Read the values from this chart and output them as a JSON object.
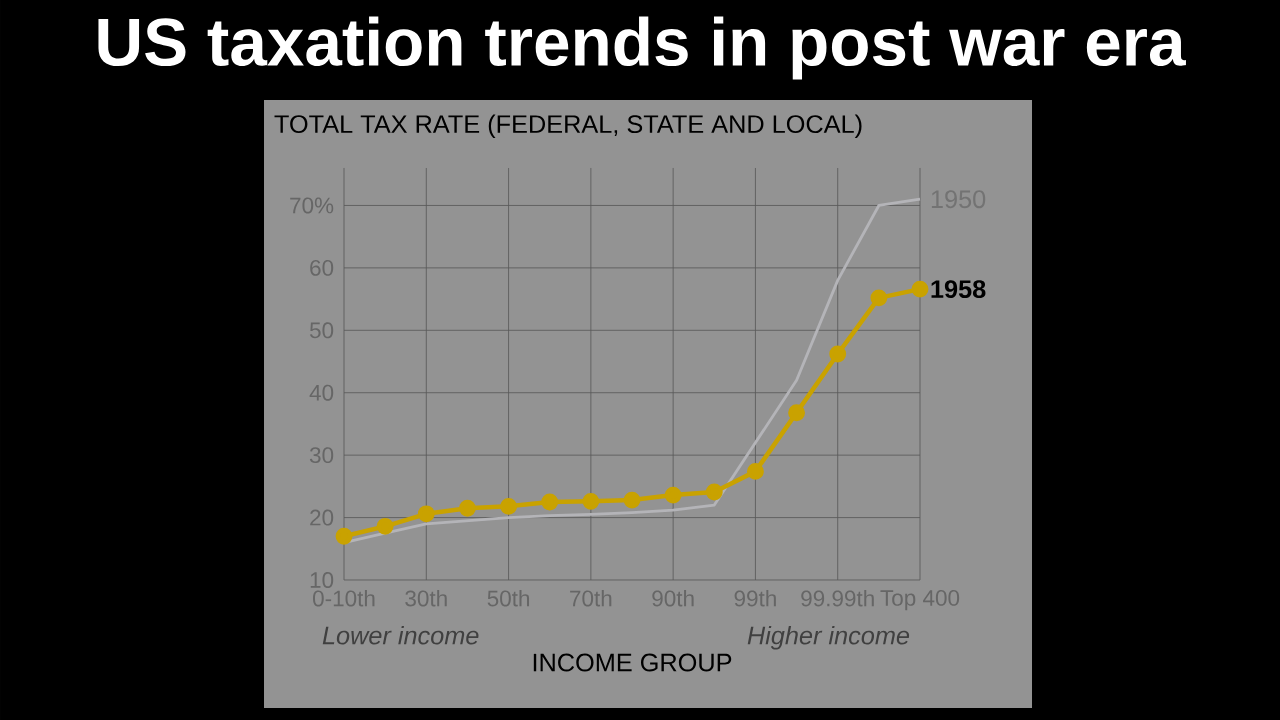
{
  "chart_data": {
    "type": "line",
    "title": "US taxation trends in post war era",
    "ylabel": "TOTAL TAX RATE (FEDERAL, STATE AND LOCAL)",
    "xlabel": "INCOME GROUP",
    "categories": [
      "0-10th",
      null,
      "30th",
      null,
      "50th",
      null,
      "70th",
      null,
      "90th",
      null,
      "99th",
      null,
      "99.99th",
      null,
      "Top 400"
    ],
    "series": [
      {
        "name": "1950",
        "color": "#b4b4b8",
        "marker": "none",
        "values": [
          16,
          17.5,
          19,
          19.5,
          20,
          20.3,
          20.5,
          20.8,
          21.2,
          22,
          null,
          42,
          58,
          70,
          71
        ]
      },
      {
        "name": "1958",
        "color": "#c9a200",
        "marker": "circle",
        "values": [
          17,
          18.6,
          20.6,
          21.5,
          21.8,
          22.5,
          22.6,
          22.8,
          23.6,
          24.1,
          27.4,
          36.8,
          46.2,
          55.2,
          56.6
        ]
      }
    ],
    "ylim": [
      10,
      76
    ],
    "yticks": [
      10,
      20,
      30,
      40,
      50,
      60,
      {
        "value": 70,
        "label": "70%"
      }
    ],
    "grid": true,
    "annotations": [
      "Lower income",
      "Higher income"
    ]
  }
}
